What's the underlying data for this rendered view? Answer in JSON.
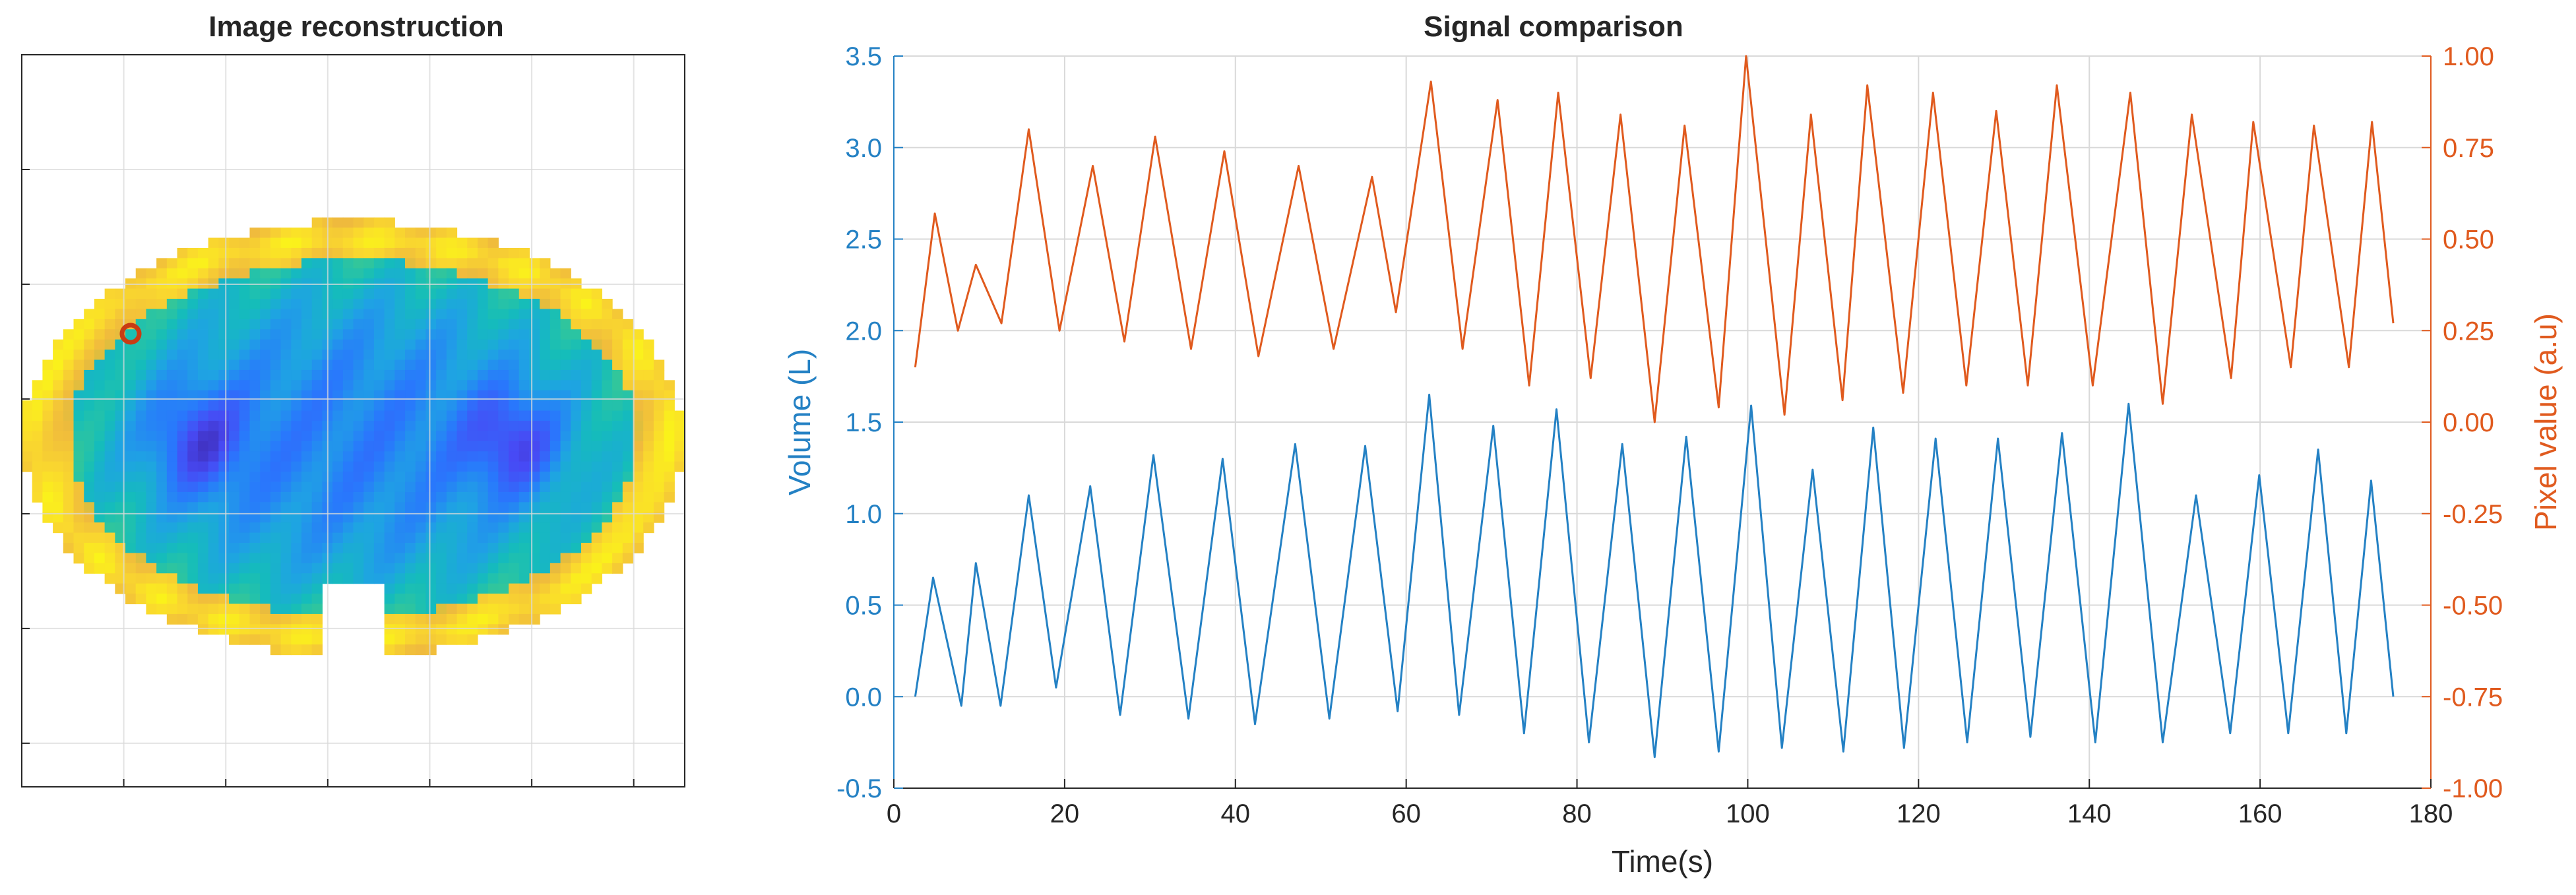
{
  "colors": {
    "volume": "#2481c4",
    "pixel": "#e05a1e",
    "grid": "#d9d9d9",
    "axis": "#262626",
    "marker": "#c83c14"
  },
  "chart_data": [
    {
      "type": "heatmap",
      "title": "Image reconstruction",
      "grid": true,
      "colormap": "parula",
      "marker": {
        "shape": "circle",
        "color": "#c83c14"
      }
    },
    {
      "type": "line",
      "title": "Signal comparison",
      "xlabel": "Time(s)",
      "ylabel_left": "Volume (L)",
      "ylabel_right": "Pixel value (a.u)",
      "xlim": [
        0,
        180
      ],
      "ylim_left": [
        -0.5,
        3.5
      ],
      "ylim_right": [
        -1.0,
        1.0
      ],
      "x_ticks": [
        "0",
        "20",
        "40",
        "60",
        "80",
        "100",
        "120",
        "140",
        "160",
        "180"
      ],
      "y_ticks_left": [
        "-0.5",
        "0.0",
        "0.5",
        "1.0",
        "1.5",
        "2.0",
        "2.5",
        "3.0",
        "3.5"
      ],
      "y_ticks_right": [
        "-1.00",
        "-0.75",
        "-0.50",
        "-0.25",
        "0.00",
        "0.25",
        "0.50",
        "0.75",
        "1.00"
      ],
      "grid": true,
      "series": [
        {
          "axis": "left",
          "x": [
            2.5,
            4.6,
            7.9,
            9.6,
            12.5,
            15.8,
            19.0,
            23.0,
            26.5,
            30.4,
            34.5,
            38.5,
            42.3,
            47.0,
            51.0,
            55.2,
            59.0,
            62.7,
            66.2,
            70.2,
            73.8,
            77.6,
            81.4,
            85.3,
            89.1,
            92.8,
            96.6,
            100.4,
            104.0,
            107.6,
            111.2,
            114.7,
            118.3,
            122.0,
            125.7,
            129.3,
            133.1,
            136.8,
            140.7,
            144.6,
            148.6,
            152.5,
            156.5,
            159.9,
            163.3,
            166.8,
            170.1,
            173.0,
            175.6
          ],
          "y": [
            0.0,
            0.65,
            -0.05,
            0.73,
            -0.05,
            1.1,
            0.05,
            1.15,
            -0.1,
            1.32,
            -0.12,
            1.3,
            -0.15,
            1.38,
            -0.12,
            1.37,
            -0.08,
            1.65,
            -0.1,
            1.48,
            -0.2,
            1.57,
            -0.25,
            1.38,
            -0.33,
            1.42,
            -0.3,
            1.59,
            -0.28,
            1.24,
            -0.3,
            1.47,
            -0.28,
            1.41,
            -0.25,
            1.41,
            -0.22,
            1.44,
            -0.25,
            1.6,
            -0.25,
            1.1,
            -0.2,
            1.21,
            -0.2,
            1.35,
            -0.2,
            1.18,
            0.0
          ]
        },
        {
          "axis": "right",
          "x": [
            2.5,
            4.8,
            7.5,
            9.6,
            12.6,
            15.8,
            19.4,
            23.3,
            27.0,
            30.6,
            34.8,
            38.7,
            42.7,
            47.4,
            51.5,
            56.0,
            58.8,
            62.9,
            66.6,
            70.7,
            74.4,
            77.8,
            81.6,
            85.1,
            89.1,
            92.6,
            96.6,
            99.8,
            104.3,
            107.4,
            111.1,
            114.0,
            118.2,
            121.7,
            125.6,
            129.1,
            132.8,
            136.2,
            140.4,
            144.8,
            148.6,
            152.0,
            156.6,
            159.2,
            163.6,
            166.3,
            170.4,
            173.1,
            175.6
          ],
          "y": [
            0.15,
            0.57,
            0.25,
            0.43,
            0.27,
            0.8,
            0.25,
            0.7,
            0.22,
            0.78,
            0.2,
            0.74,
            0.18,
            0.7,
            0.2,
            0.67,
            0.3,
            0.93,
            0.2,
            0.88,
            0.1,
            0.9,
            0.12,
            0.84,
            0.0,
            0.81,
            0.04,
            1.0,
            0.02,
            0.84,
            0.06,
            0.92,
            0.08,
            0.9,
            0.1,
            0.85,
            0.1,
            0.92,
            0.1,
            0.9,
            0.05,
            0.84,
            0.12,
            0.82,
            0.15,
            0.81,
            0.15,
            0.82,
            0.27
          ]
        }
      ]
    }
  ]
}
